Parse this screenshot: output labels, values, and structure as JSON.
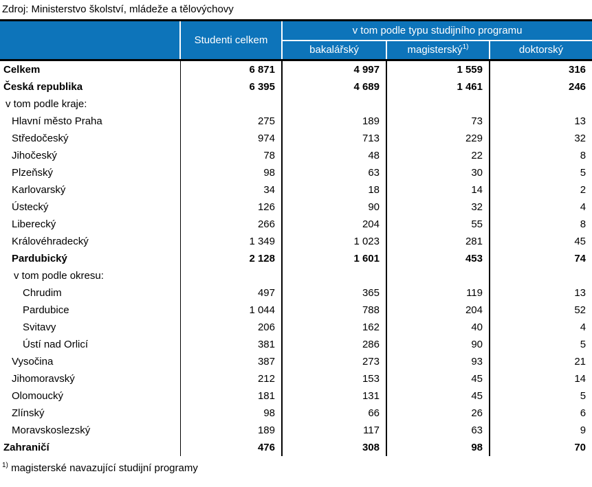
{
  "source_line": "Zdroj: Ministerstvo školství, mládeže a tělovýchovy",
  "colors": {
    "header_background": "#0d74ba",
    "header_text": "#ffffff",
    "body_text": "#000000",
    "border": "#000000"
  },
  "table": {
    "header": {
      "col_students_total": "Studenti celkem",
      "group_title": "v tom podle typu studijního programu",
      "sub_columns": [
        "bakalářský",
        "magisterský",
        "doktorský"
      ],
      "magistersky_footnote_marker": "1)"
    },
    "rows": [
      {
        "label": "Celkem",
        "indent": 0,
        "bold": true,
        "values": [
          "6 871",
          "4 997",
          "1 559",
          "316"
        ]
      },
      {
        "label": "Česká republika",
        "indent": 0,
        "bold": true,
        "values": [
          "6 395",
          "4 689",
          "1 461",
          "246"
        ]
      },
      {
        "label": "v tom podle kraje:",
        "indent": 1,
        "bold": false,
        "values": [
          "",
          "",
          "",
          ""
        ]
      },
      {
        "label": "Hlavní město Praha",
        "indent": 2,
        "bold": false,
        "values": [
          "275",
          "189",
          "73",
          "13"
        ]
      },
      {
        "label": "Středočeský",
        "indent": 2,
        "bold": false,
        "values": [
          "974",
          "713",
          "229",
          "32"
        ]
      },
      {
        "label": "Jihočeský",
        "indent": 2,
        "bold": false,
        "values": [
          "78",
          "48",
          "22",
          "8"
        ]
      },
      {
        "label": "Plzeňský",
        "indent": 2,
        "bold": false,
        "values": [
          "98",
          "63",
          "30",
          "5"
        ]
      },
      {
        "label": "Karlovarský",
        "indent": 2,
        "bold": false,
        "values": [
          "34",
          "18",
          "14",
          "2"
        ]
      },
      {
        "label": "Ústecký",
        "indent": 2,
        "bold": false,
        "values": [
          "126",
          "90",
          "32",
          "4"
        ]
      },
      {
        "label": "Liberecký",
        "indent": 2,
        "bold": false,
        "values": [
          "266",
          "204",
          "55",
          "8"
        ]
      },
      {
        "label": "Královéhradecký",
        "indent": 2,
        "bold": false,
        "values": [
          "1 349",
          "1 023",
          "281",
          "45"
        ]
      },
      {
        "label": "Pardubický",
        "indent": 2,
        "bold": true,
        "values": [
          "2 128",
          "1 601",
          "453",
          "74"
        ]
      },
      {
        "label": "v tom podle okresu:",
        "indent": 3,
        "bold": false,
        "values": [
          "",
          "",
          "",
          ""
        ]
      },
      {
        "label": "Chrudim",
        "indent": 4,
        "bold": false,
        "values": [
          "497",
          "365",
          "119",
          "13"
        ]
      },
      {
        "label": "Pardubice",
        "indent": 4,
        "bold": false,
        "values": [
          "1 044",
          "788",
          "204",
          "52"
        ]
      },
      {
        "label": "Svitavy",
        "indent": 4,
        "bold": false,
        "values": [
          "206",
          "162",
          "40",
          "4"
        ]
      },
      {
        "label": "Ústí nad Orlicí",
        "indent": 4,
        "bold": false,
        "values": [
          "381",
          "286",
          "90",
          "5"
        ]
      },
      {
        "label": "Vysočina",
        "indent": 2,
        "bold": false,
        "values": [
          "387",
          "273",
          "93",
          "21"
        ]
      },
      {
        "label": "Jihomoravský",
        "indent": 2,
        "bold": false,
        "values": [
          "212",
          "153",
          "45",
          "14"
        ]
      },
      {
        "label": "Olomoucký",
        "indent": 2,
        "bold": false,
        "values": [
          "181",
          "131",
          "45",
          "5"
        ]
      },
      {
        "label": "Zlínský",
        "indent": 2,
        "bold": false,
        "values": [
          "98",
          "66",
          "26",
          "6"
        ]
      },
      {
        "label": "Moravskoslezský",
        "indent": 2,
        "bold": false,
        "values": [
          "189",
          "117",
          "63",
          "9"
        ]
      },
      {
        "label": "Zahraničí",
        "indent": 0,
        "bold": true,
        "values": [
          "476",
          "308",
          "98",
          "70"
        ]
      }
    ]
  },
  "footnote": {
    "marker": "1)",
    "text": "magisterské navazující studijní programy"
  }
}
